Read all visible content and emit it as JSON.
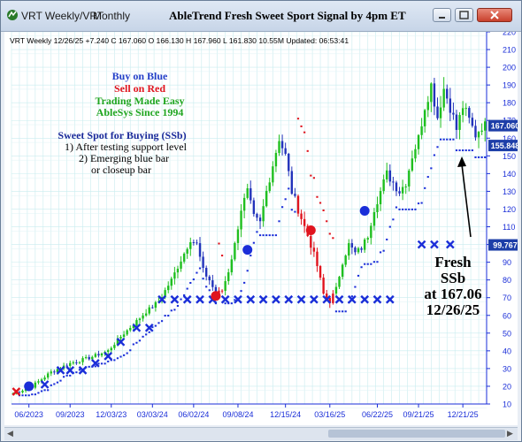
{
  "window": {
    "tabs": [
      "VRT Weekly/VRT",
      "Monthly"
    ],
    "title": "AbleTrend Fresh Sweet Sport Signal by 4pm ET"
  },
  "header_line": "VRT  Weekly 12/26/25 +7.240 C 167.060 O 166.130 H 167.960 L 161.830 10.55M Updated: 06:53:41",
  "legend": {
    "buy": "Buy on Blue",
    "sell": "Sell on Red",
    "easy": "Trading Made Easy",
    "since": "AbleSys Since 1994"
  },
  "sweet_spot": {
    "title": "Sweet Spot for Buying (SSb)",
    "line1": "1) After testing support level",
    "line2": "2) Emerging blue bar",
    "line3": "or closeup bar"
  },
  "annotation": {
    "line1": "Fresh",
    "line2": "SSb",
    "line3": "at 167.06",
    "line4": "12/26/25"
  },
  "price_tags": [
    {
      "text": "167.060",
      "value": 167.06,
      "color": "#1d3ea8"
    },
    {
      "text": "155.848",
      "value": 155.848,
      "color": "#1d3ea8"
    },
    {
      "text": "99.767",
      "value": 99.767,
      "color": "#1d3ea8"
    }
  ],
  "chart_data": {
    "type": "candlestick",
    "ylim": [
      10,
      220
    ],
    "y_ticks": [
      10,
      20,
      30,
      40,
      50,
      60,
      70,
      80,
      90,
      100,
      110,
      120,
      130,
      140,
      150,
      160,
      170,
      180,
      190,
      200,
      210,
      220
    ],
    "x_labels": [
      "06/2023",
      "09/2023",
      "12/03/23",
      "03/03/24",
      "06/02/24",
      "09/08/24",
      "12/15/24",
      "03/16/25",
      "06/22/25",
      "09/21/25",
      "12/21/25"
    ],
    "x_label_index": [
      5,
      18,
      31,
      44,
      57,
      71,
      86,
      100,
      115,
      128,
      142
    ],
    "n_bars": 150,
    "colors": {
      "up": "#1fbf1f",
      "down": "#2233bb",
      "sell": "#e0141e",
      "stop_blue": "#1a2ed8",
      "stop_red": "#e0141e"
    },
    "anchors": [
      [
        0,
        16
      ],
      [
        6,
        20
      ],
      [
        12,
        28
      ],
      [
        18,
        33
      ],
      [
        24,
        36
      ],
      [
        30,
        40
      ],
      [
        34,
        48
      ],
      [
        38,
        55
      ],
      [
        42,
        62
      ],
      [
        46,
        68
      ],
      [
        50,
        80
      ],
      [
        54,
        95
      ],
      [
        56,
        103
      ],
      [
        58,
        100
      ],
      [
        60,
        85
      ],
      [
        62,
        80
      ],
      [
        64,
        72
      ],
      [
        66,
        74
      ],
      [
        68,
        85
      ],
      [
        70,
        100
      ],
      [
        72,
        120
      ],
      [
        74,
        130
      ],
      [
        76,
        115
      ],
      [
        78,
        112
      ],
      [
        80,
        130
      ],
      [
        82,
        145
      ],
      [
        84,
        160
      ],
      [
        86,
        150
      ],
      [
        88,
        130
      ],
      [
        90,
        120
      ],
      [
        92,
        110
      ],
      [
        94,
        100
      ],
      [
        96,
        88
      ],
      [
        98,
        72
      ],
      [
        100,
        68
      ],
      [
        102,
        75
      ],
      [
        104,
        90
      ],
      [
        106,
        100
      ],
      [
        108,
        95
      ],
      [
        110,
        98
      ],
      [
        112,
        105
      ],
      [
        114,
        120
      ],
      [
        116,
        130
      ],
      [
        118,
        140
      ],
      [
        120,
        135
      ],
      [
        122,
        130
      ],
      [
        124,
        135
      ],
      [
        126,
        150
      ],
      [
        128,
        160
      ],
      [
        130,
        178
      ],
      [
        132,
        190
      ],
      [
        134,
        172
      ],
      [
        136,
        188
      ],
      [
        138,
        178
      ],
      [
        140,
        165
      ],
      [
        142,
        178
      ],
      [
        144,
        170
      ],
      [
        146,
        162
      ],
      [
        148,
        167
      ]
    ],
    "red_ranges": [
      [
        65,
        66
      ],
      [
        90,
        101
      ]
    ],
    "x_marks": [
      {
        "i": 10,
        "v": 21
      },
      {
        "i": 15,
        "v": 29
      },
      {
        "i": 18,
        "v": 29
      },
      {
        "i": 22,
        "v": 29
      },
      {
        "i": 26,
        "v": 33
      },
      {
        "i": 30,
        "v": 37
      },
      {
        "i": 34,
        "v": 45
      },
      {
        "i": 39,
        "v": 53
      },
      {
        "i": 43,
        "v": 53
      },
      {
        "i": 47,
        "v": 69
      },
      {
        "i": 51,
        "v": 69
      },
      {
        "i": 55,
        "v": 69
      },
      {
        "i": 59,
        "v": 69
      },
      {
        "i": 63,
        "v": 69
      },
      {
        "i": 67,
        "v": 69
      },
      {
        "i": 71,
        "v": 69
      },
      {
        "i": 75,
        "v": 69
      },
      {
        "i": 79,
        "v": 69
      },
      {
        "i": 83,
        "v": 69
      },
      {
        "i": 87,
        "v": 69
      },
      {
        "i": 91,
        "v": 69
      },
      {
        "i": 95,
        "v": 69
      },
      {
        "i": 99,
        "v": 69
      },
      {
        "i": 103,
        "v": 69
      },
      {
        "i": 107,
        "v": 69
      },
      {
        "i": 111,
        "v": 69
      },
      {
        "i": 115,
        "v": 69
      },
      {
        "i": 119,
        "v": 69
      },
      {
        "i": 129,
        "v": 100
      },
      {
        "i": 133,
        "v": 100
      },
      {
        "i": 138,
        "v": 100
      }
    ],
    "red_x_marks": [
      {
        "i": 1,
        "v": 17
      }
    ],
    "circles": [
      {
        "i": 5,
        "v": 20,
        "color": "blue"
      },
      {
        "i": 64,
        "v": 71,
        "color": "red"
      },
      {
        "i": 74,
        "v": 97,
        "color": "blue"
      },
      {
        "i": 94,
        "v": 108,
        "color": "red"
      },
      {
        "i": 111,
        "v": 119,
        "color": "blue"
      }
    ]
  }
}
